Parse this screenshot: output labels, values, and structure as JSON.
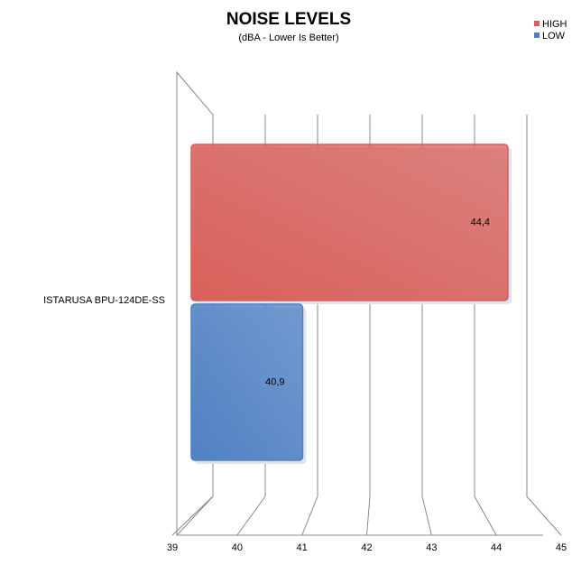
{
  "chart_data": {
    "type": "bar",
    "orientation": "horizontal",
    "title": "NOISE LEVELS",
    "subtitle": "(dBA - Lower Is Better)",
    "categories": [
      "ISTARUSA BPU-124DE-SS"
    ],
    "series": [
      {
        "name": "HIGH",
        "color": "#d9605a",
        "values": [
          44.4
        ],
        "value_labels": [
          "44,4"
        ]
      },
      {
        "name": "LOW",
        "color": "#4f81c4",
        "values": [
          40.9
        ],
        "value_labels": [
          "40,9"
        ]
      }
    ],
    "xlim": [
      39,
      45
    ],
    "xticks": [
      39,
      40,
      41,
      42,
      43,
      44,
      45
    ],
    "grid": true,
    "legend": "top-right"
  }
}
